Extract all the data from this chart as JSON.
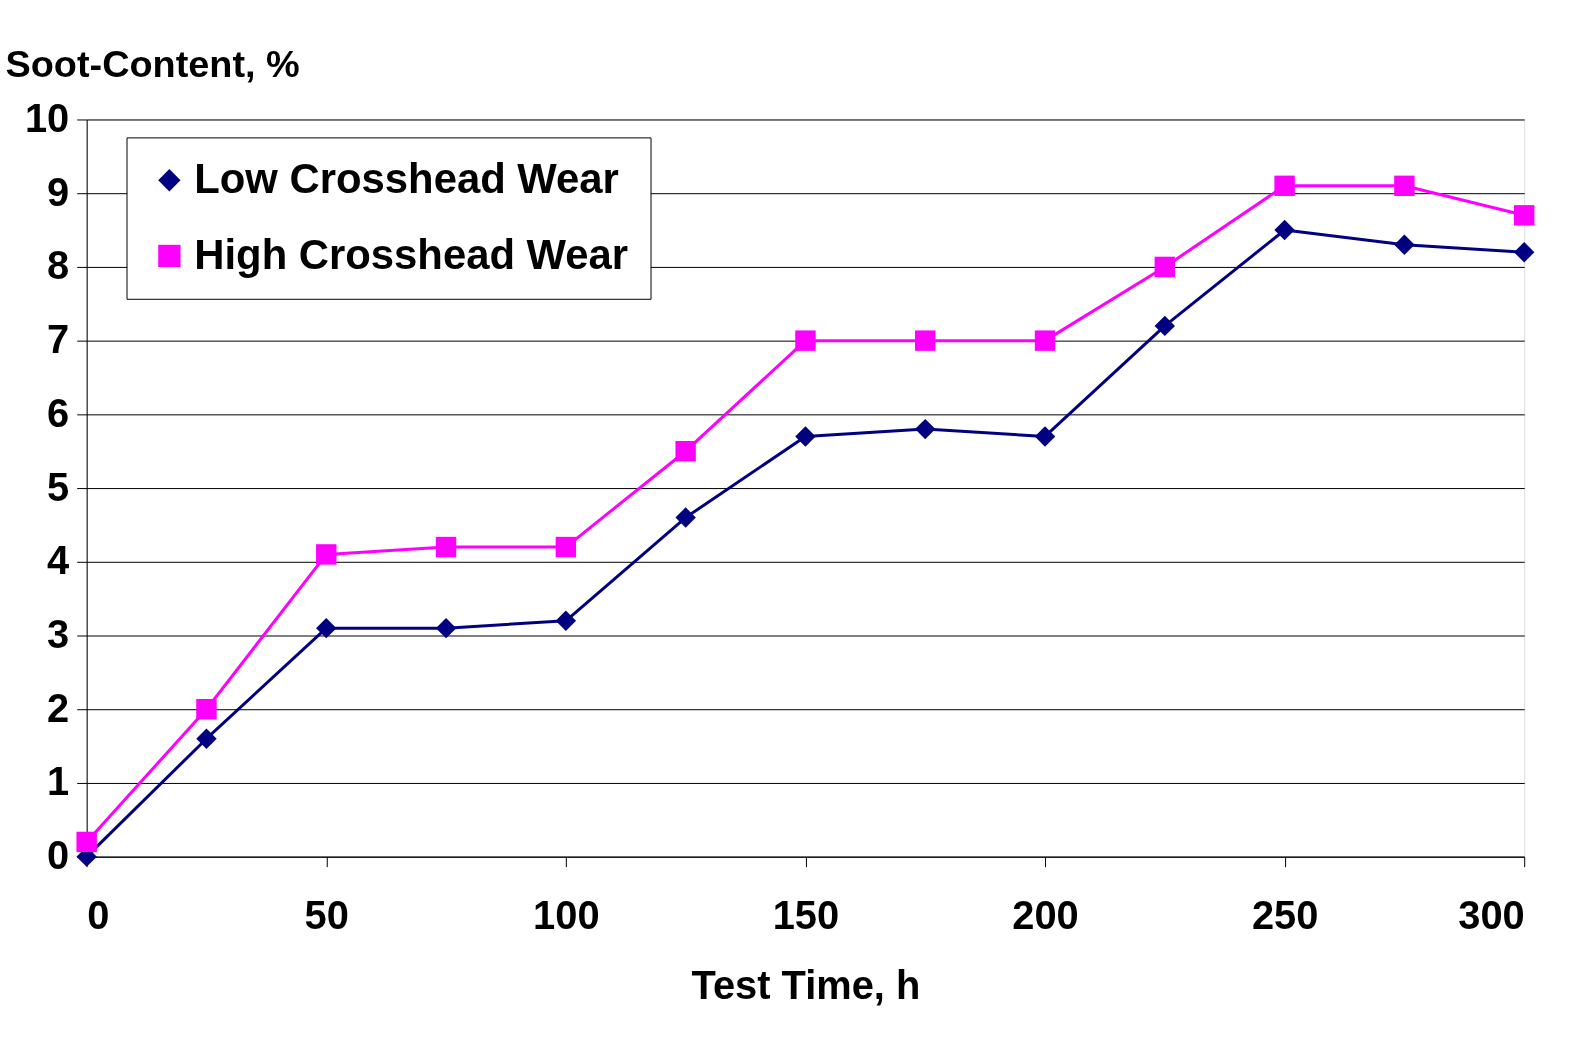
{
  "chart_data": {
    "type": "line",
    "xlabel": "Test Time, h",
    "ylabel": "Soot-Content, %",
    "x": [
      0,
      25,
      50,
      75,
      100,
      125,
      150,
      175,
      200,
      225,
      250,
      275,
      300
    ],
    "series": [
      {
        "name": "Low Crosshead Wear",
        "color": "#000080",
        "marker": "diamond",
        "values": [
          0,
          1.6,
          3.1,
          3.1,
          3.2,
          4.6,
          5.7,
          5.8,
          5.7,
          7.2,
          8.5,
          8.3,
          8.2
        ]
      },
      {
        "name": "High Crosshead Wear",
        "color": "#ff00ff",
        "marker": "square",
        "values": [
          0.2,
          2.0,
          4.1,
          4.2,
          4.2,
          5.5,
          7.0,
          7.0,
          7.0,
          8.0,
          9.1,
          9.1,
          8.7
        ]
      }
    ],
    "xlim": [
      0,
      300
    ],
    "xticks": [
      0,
      50,
      100,
      150,
      200,
      250,
      300
    ],
    "ylim": [
      0,
      10
    ],
    "yticks": [
      0,
      1,
      2,
      3,
      4,
      5,
      6,
      7,
      8,
      9,
      10
    ],
    "grid": "y",
    "legend": "top left",
    "line_style": "solid"
  }
}
